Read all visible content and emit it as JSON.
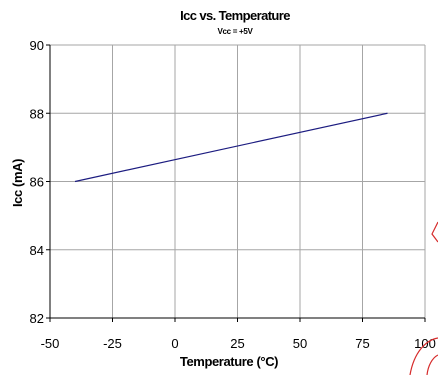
{
  "chart_data": {
    "type": "line",
    "title": "Icc vs. Temperature",
    "subtitle": "Vcc = +5V",
    "xlabel": "Temperature (°C)",
    "ylabel": "Icc (mA)",
    "xlim": [
      -50,
      100
    ],
    "ylim": [
      82,
      90
    ],
    "xticks": [
      -50,
      -25,
      0,
      25,
      50,
      75,
      100
    ],
    "yticks": [
      82,
      84,
      86,
      88,
      90
    ],
    "grid": true,
    "legend": "none",
    "series": [
      {
        "x": [
          -40,
          85
        ],
        "y": [
          86,
          88
        ],
        "color": "#1c1c80"
      }
    ]
  }
}
